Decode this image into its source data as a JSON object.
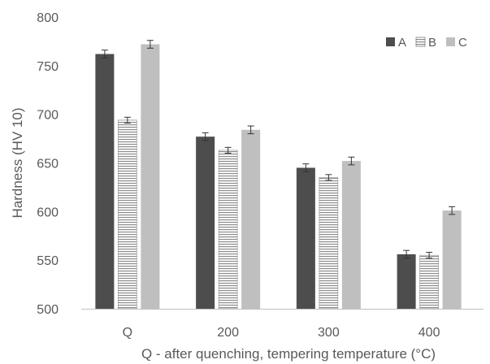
{
  "chart_data": {
    "type": "bar",
    "title": "",
    "xlabel": "Q - after quenching, tempering temperature (°C)",
    "ylabel": "Hardness (HV 10)",
    "ylim": [
      500,
      800
    ],
    "yticks": [
      500,
      550,
      600,
      650,
      700,
      750,
      800
    ],
    "categories": [
      "Q",
      "200",
      "300",
      "400"
    ],
    "grid": false,
    "legend_position": "top-right",
    "series": [
      {
        "name": "A",
        "values": [
          762,
          677,
          645,
          556
        ],
        "errors": [
          4,
          4,
          4,
          4
        ],
        "fill": "#4d4d4d",
        "pattern": "solid"
      },
      {
        "name": "B",
        "values": [
          694,
          663,
          635,
          555
        ],
        "errors": [
          3,
          3,
          3,
          3
        ],
        "fill": "#ffffff",
        "pattern": "horizontal-lines"
      },
      {
        "name": "C",
        "values": [
          772,
          684,
          652,
          601
        ],
        "errors": [
          4,
          4,
          4,
          4
        ],
        "fill": "#bfbfbf",
        "pattern": "solid"
      }
    ]
  },
  "colors": {
    "axis": "#bfbfbf",
    "text": "#595959",
    "stripe": "#7f7f7f",
    "error_bar": "#333333"
  }
}
